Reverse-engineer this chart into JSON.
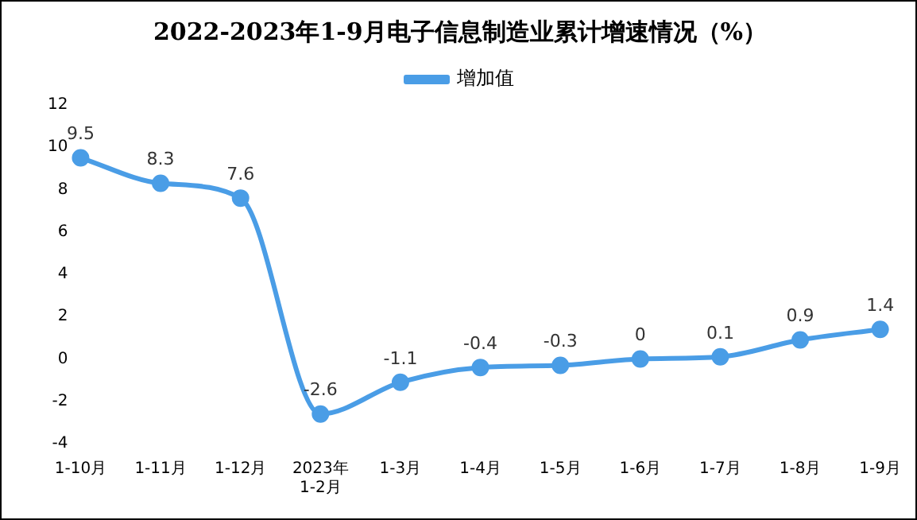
{
  "chart_data": {
    "type": "line",
    "title": "2022-2023年1-9月电子信息制造业累计增速情况（%）",
    "categories": [
      "1-10月",
      "1-11月",
      "1-12月",
      "2023年\n1-2月",
      "1-3月",
      "1-4月",
      "1-5月",
      "1-6月",
      "1-7月",
      "1-8月",
      "1-9月"
    ],
    "series": [
      {
        "name": "增加值",
        "color": "#4a9de6",
        "values": [
          9.5,
          8.3,
          7.6,
          -2.6,
          -1.1,
          -0.4,
          -0.3,
          0,
          0.1,
          0.9,
          1.4
        ]
      }
    ],
    "ylim": [
      -4,
      12
    ],
    "yticks": [
      -4,
      -2,
      0,
      2,
      4,
      6,
      8,
      10,
      12
    ],
    "grid": false,
    "legend": "top",
    "marker": "circle",
    "line_style": "solid",
    "data_labels": true
  }
}
